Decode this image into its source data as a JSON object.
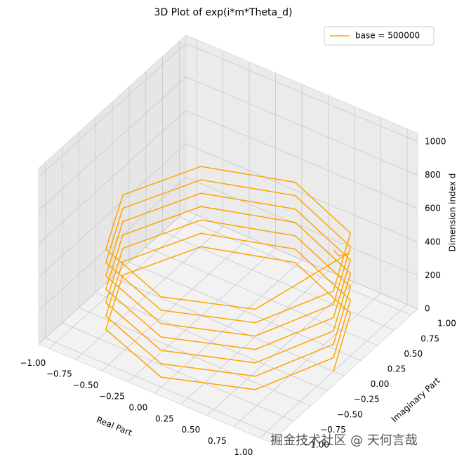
{
  "chart_data": {
    "type": "line3d",
    "title": "3D Plot of exp(i*m*Theta_d)",
    "xlabel": "Real Part",
    "ylabel": "Imaginary Part",
    "zlabel": "Dimension index d",
    "xlim": [
      -1.1,
      1.1
    ],
    "ylim": [
      -1.1,
      1.1
    ],
    "zlim": [
      0,
      1050
    ],
    "xticks": [
      {
        "value": -1,
        "label": "−1.00"
      },
      {
        "value": -0.75,
        "label": "−0.75"
      },
      {
        "value": -0.5,
        "label": "−0.50"
      },
      {
        "value": -0.25,
        "label": "−0.25"
      },
      {
        "value": 0,
        "label": "0.00"
      },
      {
        "value": 0.25,
        "label": "0.25"
      },
      {
        "value": 0.5,
        "label": "0.50"
      },
      {
        "value": 0.75,
        "label": "0.75"
      },
      {
        "value": 1,
        "label": "1.00"
      }
    ],
    "yticks": [
      {
        "value": -1,
        "label": "−1.00"
      },
      {
        "value": -0.75,
        "label": "−0.75"
      },
      {
        "value": -0.5,
        "label": "−0.50"
      },
      {
        "value": -0.25,
        "label": "−0.25"
      },
      {
        "value": 0,
        "label": "0.00"
      },
      {
        "value": 0.25,
        "label": "0.25"
      },
      {
        "value": 0.5,
        "label": "0.50"
      },
      {
        "value": 0.75,
        "label": "0.75"
      },
      {
        "value": 1,
        "label": "1.00"
      }
    ],
    "zticks": [
      0,
      200,
      400,
      600,
      800,
      1000
    ],
    "grid": true,
    "legend": "upper right",
    "series": [
      {
        "name": "base = 500000",
        "color": "#ffa500",
        "x": [
          1,
          0.71,
          0,
          -0.71,
          -1,
          -0.71,
          0,
          0.71,
          1,
          0.71,
          0,
          -0.71,
          -1,
          -0.71,
          0,
          0.71,
          1,
          0.71,
          0,
          -0.71,
          -1,
          -0.71,
          0,
          0.71,
          1,
          0.71,
          0,
          -0.71,
          -1,
          -0.71,
          0,
          0.71,
          1,
          0.71,
          0,
          -0.71,
          -1,
          -0.71,
          0,
          0.71,
          1,
          0.71,
          0,
          -0.71,
          -1,
          -0.71,
          0,
          0.71,
          1,
          0.71,
          0,
          -0.71,
          -1,
          -0.71,
          0,
          0.71,
          0.97,
          0.99,
          1,
          1
        ],
        "y": [
          0,
          0.71,
          1,
          0.71,
          0,
          -0.71,
          -1,
          -0.71,
          0,
          0.71,
          1,
          0.71,
          0,
          -0.71,
          -1,
          -0.71,
          0,
          0.71,
          1,
          0.71,
          0,
          -0.71,
          -1,
          -0.71,
          0,
          0.71,
          1,
          0.71,
          0,
          -0.71,
          -1,
          -0.71,
          0,
          0.71,
          1,
          0.71,
          0,
          -0.71,
          -1,
          -0.71,
          0,
          0.71,
          1,
          0.71,
          0,
          -0.71,
          -1,
          -0.71,
          0,
          0.71,
          1,
          0.71,
          0,
          -0.71,
          -1,
          -0.71,
          0.26,
          0.1,
          0.03,
          0.01
        ],
        "z": [
          0,
          10,
          20,
          30,
          40,
          50,
          60,
          70,
          80,
          90,
          100,
          110,
          120,
          130,
          140,
          150,
          160,
          170,
          180,
          190,
          200,
          210,
          220,
          230,
          240,
          250,
          260,
          270,
          280,
          290,
          300,
          310,
          320,
          330,
          340,
          350,
          360,
          370,
          380,
          390,
          400,
          410,
          420,
          430,
          440,
          450,
          460,
          470,
          480,
          490,
          500,
          510,
          520,
          530,
          540,
          550,
          600,
          650,
          700,
          720
        ]
      }
    ]
  },
  "watermark": "掘金技术社区 @ 天何言哉"
}
